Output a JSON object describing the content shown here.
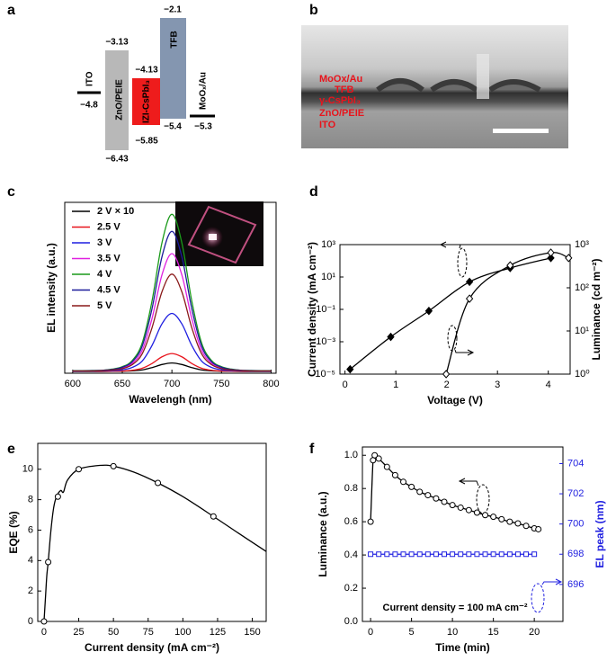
{
  "panel_labels": [
    "a",
    "b",
    "c",
    "d",
    "e",
    "f"
  ],
  "energy_diagram": {
    "layers": [
      {
        "name": "ITO",
        "levels": [
          "−4.8"
        ]
      },
      {
        "name": "ZnO/PEIE",
        "levels": [
          "−3.13",
          "−6.43"
        ]
      },
      {
        "name": "IZI-CsPbI₃",
        "levels": [
          "−4.13",
          "−5.85"
        ]
      },
      {
        "name": "TFB",
        "levels": [
          "−2.1",
          "−5.4"
        ]
      },
      {
        "name": "MoOₓ/Au",
        "levels": [
          "−5.3"
        ]
      }
    ]
  },
  "micrograph": {
    "labels": [
      "MoOx/Au",
      "TFB",
      "γ-CsPbI₃",
      "ZnO/PEIE",
      "ITO"
    ]
  },
  "chart_data": [
    {
      "type": "line",
      "xlabel": "Wavelengh (nm)",
      "ylabel": "EL intensity (a.u.)",
      "legend": "upper left",
      "x": [
        600,
        610,
        620,
        630,
        640,
        650,
        660,
        670,
        680,
        690,
        700,
        710,
        720,
        730,
        740,
        750,
        760,
        770,
        780,
        790,
        800
      ],
      "xlim": [
        592,
        805
      ],
      "xticks": [
        600,
        650,
        700,
        750,
        800
      ],
      "ylim": [
        0,
        1
      ],
      "series": [
        {
          "name": "2 V × 10",
          "color": "#000000",
          "values": [
            0.01,
            0.01,
            0.01,
            0.01,
            0.011,
            0.012,
            0.014,
            0.019,
            0.033,
            0.051,
            0.06,
            0.051,
            0.033,
            0.019,
            0.014,
            0.012,
            0.011,
            0.01,
            0.01,
            0.01,
            0.01
          ]
        },
        {
          "name": "2.5 V",
          "color": "#e8141c",
          "values": [
            0.011,
            0.011,
            0.011,
            0.011,
            0.012,
            0.013,
            0.017,
            0.029,
            0.057,
            0.096,
            0.115,
            0.096,
            0.057,
            0.029,
            0.017,
            0.013,
            0.012,
            0.011,
            0.011,
            0.011,
            0.011
          ]
        },
        {
          "name": "3 V",
          "color": "#1f1fe0",
          "values": [
            0.012,
            0.012,
            0.012,
            0.013,
            0.015,
            0.02,
            0.034,
            0.071,
            0.163,
            0.289,
            0.35,
            0.289,
            0.163,
            0.071,
            0.034,
            0.02,
            0.015,
            0.013,
            0.012,
            0.012,
            0.012
          ]
        },
        {
          "name": "3.5 V",
          "color": "#e020e0",
          "values": [
            0.014,
            0.014,
            0.014,
            0.016,
            0.02,
            0.031,
            0.058,
            0.134,
            0.321,
            0.576,
            0.7,
            0.576,
            0.321,
            0.134,
            0.058,
            0.031,
            0.02,
            0.016,
            0.014,
            0.014,
            0.014
          ]
        },
        {
          "name": "4 V",
          "color": "#1a9a1a",
          "values": [
            0.015,
            0.015,
            0.016,
            0.017,
            0.024,
            0.038,
            0.074,
            0.176,
            0.424,
            0.764,
            0.93,
            0.764,
            0.424,
            0.176,
            0.074,
            0.038,
            0.024,
            0.017,
            0.016,
            0.015,
            0.015
          ]
        },
        {
          "name": "4.5 V",
          "color": "#1c1c9a",
          "values": [
            0.014,
            0.014,
            0.015,
            0.017,
            0.022,
            0.035,
            0.067,
            0.158,
            0.379,
            0.682,
            0.83,
            0.682,
            0.379,
            0.158,
            0.067,
            0.035,
            0.022,
            0.017,
            0.015,
            0.014,
            0.014
          ]
        },
        {
          "name": "5 V",
          "color": "#8a1a1a",
          "values": [
            0.013,
            0.013,
            0.013,
            0.015,
            0.019,
            0.027,
            0.05,
            0.113,
            0.267,
            0.477,
            0.58,
            0.477,
            0.267,
            0.113,
            0.05,
            0.027,
            0.019,
            0.015,
            0.013,
            0.013,
            0.013
          ]
        }
      ]
    },
    {
      "type": "line",
      "xlabel": "Voltage (V)",
      "ylabel": "Current density (mA cm⁻²)",
      "y2label": "Luminance (cd m⁻²)",
      "xlim": [
        -0.1,
        4.43
      ],
      "xticks": [
        0,
        1,
        2,
        3,
        4
      ],
      "yscale": "log",
      "ylim": [
        1e-05,
        1000
      ],
      "yticks": [
        {
          "value": 1e-05,
          "label": "10⁻⁵"
        },
        {
          "value": 0.001,
          "label": "10⁻³"
        },
        {
          "value": 0.1,
          "label": "10⁻¹"
        },
        {
          "value": 10,
          "label": "10¹"
        },
        {
          "value": 1000,
          "label": "10³"
        }
      ],
      "y2scale": "log",
      "y2lim": [
        1,
        1000
      ],
      "y2ticks": [
        {
          "value": 1,
          "label": "10⁰"
        },
        {
          "value": 10,
          "label": "10¹"
        },
        {
          "value": 100,
          "label": "10²"
        },
        {
          "value": 1000,
          "label": "10³"
        }
      ],
      "series": [
        {
          "color": "#000000",
          "marker": "diamond",
          "x": [
            0.1,
            0.9,
            1.65,
            2.45,
            3.25,
            4.05
          ],
          "values": [
            2e-05,
            0.002,
            0.08,
            5,
            36,
            150
          ]
        },
        {
          "color": "#000000",
          "marker": "diamond-open",
          "axis": "y2",
          "x": [
            1.99,
            2.45,
            3.25,
            4.05,
            4.4
          ],
          "values": [
            1,
            56,
            330,
            650,
            490
          ]
        }
      ]
    },
    {
      "type": "line",
      "xlabel": "Current density (mA cm⁻²)",
      "ylabel": "EQE (%)",
      "xlim": [
        -4.5,
        160
      ],
      "xticks": [
        0,
        25,
        50,
        75,
        100,
        125,
        150
      ],
      "ylim": [
        0,
        11.7
      ],
      "yticks": [
        0,
        2,
        4,
        6,
        8,
        10
      ],
      "series": [
        {
          "color": "#000000",
          "x": [
            0,
            1,
            2,
            3,
            5,
            7,
            9,
            12,
            14,
            17,
            25,
            40,
            50,
            65,
            82,
            100,
            122,
            140,
            160
          ],
          "values": [
            0,
            1.5,
            3,
            3.9,
            6,
            7.5,
            8.2,
            8.6,
            8.5,
            9.3,
            10,
            10.25,
            10.2,
            9.8,
            9.1,
            8.2,
            6.9,
            5.8,
            4.6
          ]
        },
        {
          "color": "#000000",
          "marker": "circle-open",
          "line": false,
          "x": [
            0,
            3,
            10,
            25,
            50,
            82,
            122
          ],
          "values": [
            0,
            3.9,
            8.2,
            10,
            10.2,
            9.1,
            6.9
          ]
        }
      ]
    },
    {
      "type": "line",
      "xlabel": "Time (min)",
      "ylabel": "Luminance (a.u.)",
      "y2label": "EL peak (nm)",
      "annotation": "Current density = 100 mA cm⁻²",
      "xlim": [
        -1,
        23.5
      ],
      "xticks": [
        0,
        5,
        10,
        15,
        20
      ],
      "ylim": [
        0,
        1.05
      ],
      "yticks": [
        {
          "value": 0,
          "label": "0.0"
        },
        0.2,
        0.4,
        0.6,
        0.8,
        {
          "value": 1,
          "label": "1.0"
        }
      ],
      "y2lim": [
        693.55,
        705.1
      ],
      "y2ticks": [
        696,
        698,
        700,
        702,
        704
      ],
      "series": [
        {
          "color": "#000000",
          "marker": "circle-open",
          "x": [
            0,
            0.3,
            0.5,
            1,
            2,
            3,
            4,
            5,
            6,
            7,
            8,
            9,
            10,
            11,
            12,
            13,
            14,
            15,
            16,
            17,
            18,
            19,
            20,
            20.5
          ],
          "values": [
            0.6,
            0.97,
            1.0,
            0.98,
            0.93,
            0.88,
            0.84,
            0.81,
            0.78,
            0.76,
            0.74,
            0.72,
            0.7,
            0.685,
            0.67,
            0.655,
            0.64,
            0.63,
            0.615,
            0.6,
            0.59,
            0.575,
            0.56,
            0.555
          ]
        },
        {
          "color": "#2020e0",
          "marker": "square-open",
          "axis": "y2",
          "x": [
            0,
            1,
            2,
            3,
            4,
            5,
            6,
            7,
            8,
            9,
            10,
            11,
            12,
            13,
            14,
            15,
            16,
            17,
            18,
            19,
            20
          ],
          "values": [
            698,
            698,
            698,
            698,
            698,
            698,
            698,
            698,
            698,
            698,
            698,
            698,
            698,
            698,
            698,
            698,
            698,
            698,
            698,
            698,
            698
          ]
        }
      ]
    }
  ]
}
